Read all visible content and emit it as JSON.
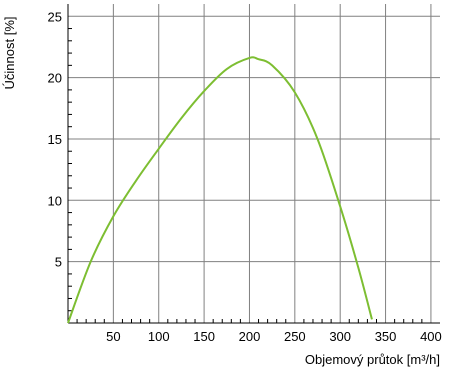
{
  "chart_data": {
    "type": "line",
    "title": "",
    "xlabel": "Objemový průtok [m³/h]",
    "ylabel": "Účinnost [%]",
    "xlim": [
      0,
      410
    ],
    "ylim": [
      0,
      26
    ],
    "xticks": [
      50,
      100,
      150,
      200,
      250,
      300,
      350,
      400
    ],
    "yticks": [
      5,
      10,
      15,
      20,
      25
    ],
    "grid": true,
    "legend": "none",
    "colors": {
      "line": "#7dbe32",
      "grid": "#808080",
      "axis": "#000000"
    },
    "series": [
      {
        "x": [
          0,
          25,
          50,
          75,
          100,
          125,
          150,
          175,
          200,
          210,
          225,
          250,
          275,
          300,
          320,
          335
        ],
        "y": [
          0,
          5.0,
          8.7,
          11.6,
          14.2,
          16.7,
          18.9,
          20.7,
          21.6,
          21.5,
          21.0,
          18.8,
          15.0,
          9.5,
          4.5,
          0.3
        ]
      }
    ]
  }
}
